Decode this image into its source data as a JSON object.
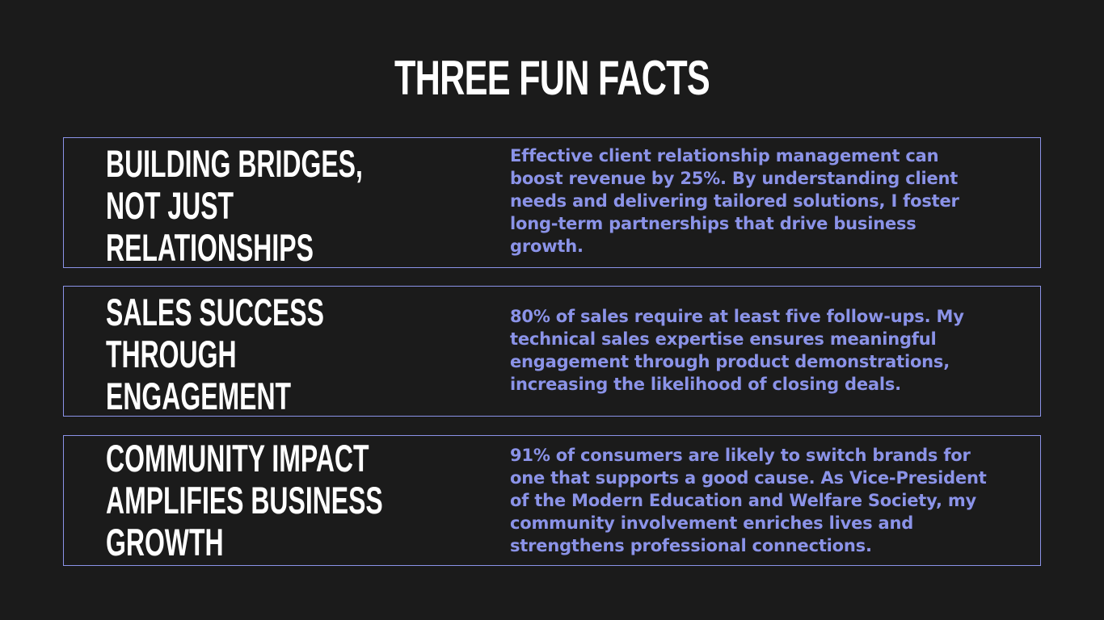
{
  "slide": {
    "title": "THREE FUN FACTS",
    "colors": {
      "background": "#1b1b1b",
      "heading": "#ffffff",
      "accent": "#8b93e8"
    },
    "facts": [
      {
        "heading": "BUILDING BRIDGES,\nNOT JUST\nRELATIONSHIPS",
        "body": "Effective client relationship management can\nboost revenue by 25%. By understanding client\nneeds and delivering tailored solutions, I foster\nlong-term partnerships that drive business\ngrowth."
      },
      {
        "heading": "SALES SUCCESS\nTHROUGH\nENGAGEMENT",
        "body": "80% of sales require at least five follow-ups. My\ntechnical sales expertise ensures meaningful\nengagement through product demonstrations,\nincreasing the likelihood of closing deals."
      },
      {
        "heading": "COMMUNITY IMPACT\nAMPLIFIES BUSINESS\nGROWTH",
        "body": "91% of consumers are likely to switch brands for\none that supports a good cause. As Vice-President\nof the Modern Education and Welfare Society, my\ncommunity involvement enriches lives and\nstrengthens professional connections."
      }
    ]
  }
}
